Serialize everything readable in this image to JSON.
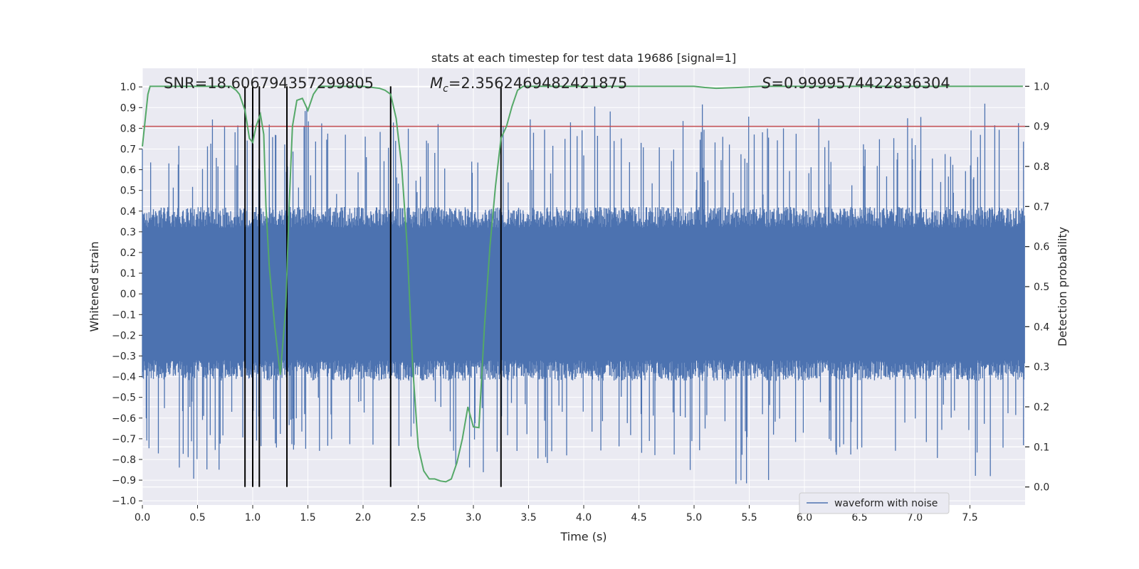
{
  "chart_data": {
    "type": "line",
    "title": "stats at each timestep for test data 19686 [signal=1]",
    "xlabel": "Time (s)",
    "ylabel_left": "Whitened strain",
    "ylabel_right": "Detection probability",
    "xlim": [
      0.0,
      8.0
    ],
    "ylim_left": [
      -1.02,
      1.09
    ],
    "ylim_right": [
      -0.045,
      1.045
    ],
    "x_ticks": [
      0.0,
      0.5,
      1.0,
      1.5,
      2.0,
      2.5,
      3.0,
      3.5,
      4.0,
      4.5,
      5.0,
      5.5,
      6.0,
      6.5,
      7.0,
      7.5
    ],
    "x_tick_labels": [
      "0.0",
      "0.5",
      "1.0",
      "1.5",
      "2.0",
      "2.5",
      "3.0",
      "3.5",
      "4.0",
      "4.5",
      "5.0",
      "5.5",
      "6.0",
      "6.5",
      "7.0",
      "7.5"
    ],
    "y_left_ticks": [
      -1.0,
      -0.9,
      -0.8,
      -0.7,
      -0.6,
      -0.5,
      -0.4,
      -0.3,
      -0.2,
      -0.1,
      0.0,
      0.1,
      0.2,
      0.3,
      0.4,
      0.5,
      0.6,
      0.7,
      0.8,
      0.9,
      1.0
    ],
    "y_left_tick_labels": [
      "−1.0",
      "−0.9",
      "−0.8",
      "−0.7",
      "−0.6",
      "−0.5",
      "−0.4",
      "−0.3",
      "−0.2",
      "−0.1",
      "0.0",
      "0.1",
      "0.2",
      "0.3",
      "0.4",
      "0.5",
      "0.6",
      "0.7",
      "0.8",
      "0.9",
      "1.0"
    ],
    "y_right_ticks": [
      0.0,
      0.1,
      0.2,
      0.3,
      0.4,
      0.5,
      0.6,
      0.7,
      0.8,
      0.9,
      1.0
    ],
    "y_right_tick_labels": [
      "0.0",
      "0.1",
      "0.2",
      "0.3",
      "0.4",
      "0.5",
      "0.6",
      "0.7",
      "0.8",
      "0.9",
      "1.0"
    ],
    "grid": true,
    "legend": {
      "entries": [
        "waveform with noise"
      ],
      "placement": "lower-right"
    },
    "annotations": {
      "snr": "SNR=18.606794357299805",
      "mc_symbol": "M",
      "mc_subscript": "c",
      "mc_value": "=2.3562469482421875",
      "s_symbol": "S",
      "s_value": "=0.9999574422836304"
    },
    "threshold": {
      "axis": "right",
      "value": 0.9
    },
    "event_markers_x": [
      0.93,
      1.0,
      1.06,
      1.31,
      2.25,
      3.25
    ],
    "event_marker_yrange_right": [
      0.0,
      1.0
    ],
    "waveform": {
      "name": "waveform with noise",
      "axis": "left",
      "n_samples": 1600,
      "base_amplitude": 0.4,
      "spike_extreme": 0.92
    },
    "detection_probability": {
      "axis": "right",
      "x": [
        0.0,
        0.05,
        0.07,
        0.1,
        0.2,
        0.4,
        0.6,
        0.8,
        0.85,
        0.88,
        0.93,
        0.97,
        1.0,
        1.03,
        1.07,
        1.1,
        1.12,
        1.15,
        1.2,
        1.25,
        1.3,
        1.33,
        1.36,
        1.4,
        1.45,
        1.5,
        1.55,
        1.6,
        1.7,
        1.8,
        2.0,
        2.15,
        2.2,
        2.25,
        2.3,
        2.35,
        2.4,
        2.45,
        2.5,
        2.55,
        2.6,
        2.65,
        2.7,
        2.75,
        2.8,
        2.85,
        2.9,
        2.95,
        3.0,
        3.05,
        3.1,
        3.15,
        3.2,
        3.25,
        3.3,
        3.35,
        3.4,
        3.45,
        3.5,
        3.6,
        3.8,
        4.0,
        4.2,
        4.4,
        4.6,
        4.8,
        5.0,
        5.1,
        5.2,
        5.4,
        5.6,
        5.8,
        6.0,
        6.5,
        7.0,
        7.5,
        7.98
      ],
      "y": [
        0.85,
        0.98,
        1.0,
        1.0,
        1.0,
        1.0,
        1.0,
        1.0,
        0.99,
        0.98,
        0.94,
        0.87,
        0.86,
        0.9,
        0.93,
        0.88,
        0.7,
        0.55,
        0.4,
        0.28,
        0.45,
        0.7,
        0.9,
        0.965,
        0.97,
        0.94,
        0.98,
        1.0,
        1.0,
        1.0,
        1.0,
        0.995,
        0.99,
        0.98,
        0.92,
        0.8,
        0.6,
        0.3,
        0.1,
        0.04,
        0.02,
        0.02,
        0.015,
        0.013,
        0.02,
        0.06,
        0.12,
        0.2,
        0.15,
        0.148,
        0.4,
        0.6,
        0.75,
        0.87,
        0.9,
        0.95,
        0.99,
        1.0,
        1.0,
        1.0,
        1.0,
        1.0,
        1.0,
        1.0,
        1.0,
        1.0,
        1.0,
        0.997,
        0.995,
        0.997,
        1.0,
        1.0,
        1.0,
        1.0,
        1.0,
        1.0,
        1.0
      ]
    },
    "colors": {
      "background": "#ffffff",
      "plot_background": "#eaeaf2",
      "grid": "#ffffff",
      "waveform": "#4c72b0",
      "detection_probability": "#55a868",
      "threshold": "#c44e52",
      "event_markers": "#000000",
      "text": "#262626"
    }
  }
}
